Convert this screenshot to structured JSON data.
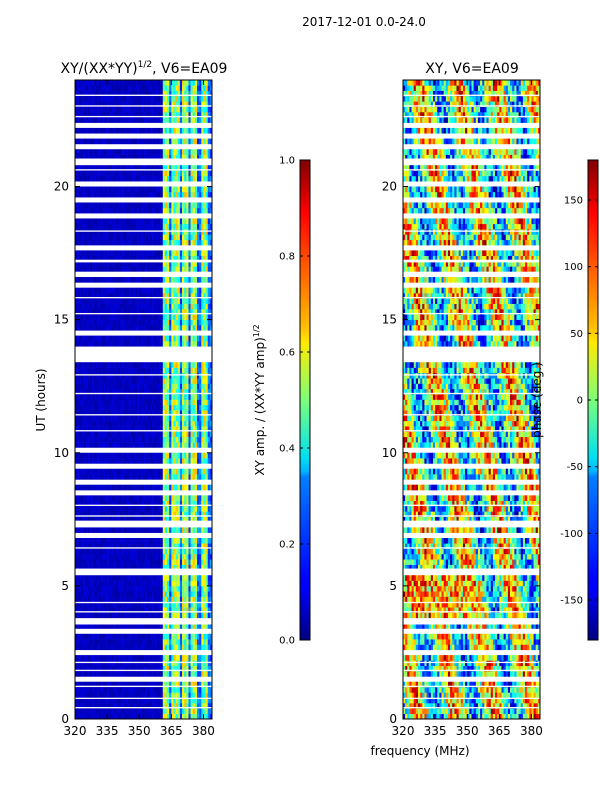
{
  "figure_title": "2017-12-01 0.0-24.0",
  "xlabel_shared": "frequency (MHz)",
  "chart_data": [
    {
      "type": "heatmap",
      "title": "XY/(XX*YY)",
      "title_superscript": "1/2",
      "title_suffix": ", V6=EA09",
      "ylabel": "UT (hours)",
      "x_ticks": [
        "320",
        "335",
        "350",
        "365",
        "380"
      ],
      "x_range": [
        320,
        384
      ],
      "y_ticks": [
        "0",
        "5",
        "10",
        "15",
        "20"
      ],
      "y_range": [
        0,
        24
      ],
      "colorbar": {
        "label": "XY amp. / (XX*YY amp)",
        "label_superscript": "1/2",
        "range": [
          0.0,
          1.0
        ],
        "ticks": [
          "0.0",
          "0.2",
          "0.4",
          "0.6",
          "0.8",
          "1.0"
        ]
      },
      "colormap": "jet",
      "note": "mostly low (~0.05) below 361 MHz; high (~0.4-0.7) in bands 361-384 MHz"
    },
    {
      "type": "heatmap",
      "title": "XY, V6=EA09",
      "x_ticks": [
        "320",
        "335",
        "350",
        "365",
        "380"
      ],
      "x_range": [
        320,
        384
      ],
      "y_ticks": [
        "0",
        "5",
        "10",
        "15",
        "20"
      ],
      "y_range": [
        0,
        24
      ],
      "colorbar": {
        "label": "phase (deg.)",
        "range": [
          -180,
          180
        ],
        "ticks": [
          "-150",
          "-100",
          "-50",
          "0",
          "50",
          "100",
          "150"
        ]
      },
      "colormap": "jet",
      "note": "noisy phase values spanning full -180..180 range"
    }
  ],
  "flagged_gaps_ut": [
    [
      0.4,
      0.45
    ],
    [
      0.75,
      0.8
    ],
    [
      1.2,
      1.25
    ],
    [
      1.45,
      1.5
    ],
    [
      1.8,
      1.85
    ],
    [
      2.1,
      2.15
    ],
    [
      2.45,
      2.5
    ],
    [
      3.3,
      3.35
    ],
    [
      3.55,
      3.75
    ],
    [
      4.0,
      4.05
    ],
    [
      4.35,
      4.4
    ],
    [
      5.5,
      5.65
    ],
    [
      6.4,
      6.45
    ],
    [
      6.8,
      6.9
    ],
    [
      7.2,
      7.45
    ],
    [
      7.6,
      7.65
    ],
    [
      8.0,
      8.05
    ],
    [
      8.45,
      8.5
    ],
    [
      8.9,
      8.95
    ],
    [
      9.5,
      9.55
    ],
    [
      10.1,
      10.15
    ],
    [
      10.8,
      10.85
    ],
    [
      11.4,
      11.45
    ],
    [
      12.2,
      12.25
    ],
    [
      12.9,
      12.95
    ],
    [
      13.5,
      13.55
    ],
    [
      13.65,
      13.95
    ],
    [
      14.5,
      14.55
    ],
    [
      15.2,
      15.25
    ],
    [
      15.8,
      15.85
    ],
    [
      16.3,
      16.35
    ],
    [
      16.6,
      16.8
    ],
    [
      17.15,
      17.25
    ],
    [
      17.7,
      17.75
    ],
    [
      18.3,
      18.35
    ],
    [
      18.9,
      18.95
    ],
    [
      19.5,
      19.55
    ],
    [
      20.1,
      20.15
    ],
    [
      20.6,
      20.65
    ],
    [
      20.85,
      21.05
    ],
    [
      21.5,
      21.55
    ],
    [
      21.9,
      21.95
    ],
    [
      22.3,
      22.35
    ],
    [
      22.6,
      22.65
    ],
    [
      23.0,
      23.05
    ],
    [
      23.4,
      23.45
    ]
  ]
}
